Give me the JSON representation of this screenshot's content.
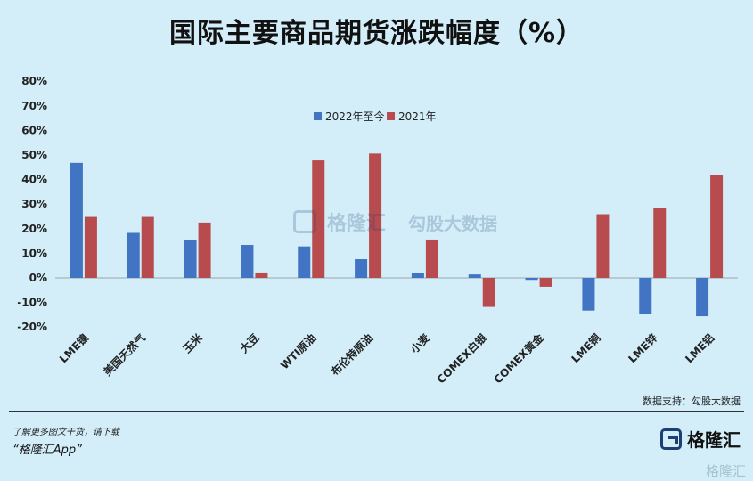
{
  "title": "国际主要商品期货涨跌幅度（%）",
  "source": "数据支持：勾股大数据",
  "footer": {
    "note": "了解更多图文干货，请下载",
    "app": "“格隆汇App”"
  },
  "brand": {
    "name": "格隆汇",
    "watermark_left": "格隆汇",
    "watermark_right": "勾股大数据",
    "corner": "格隆汇"
  },
  "colors": {
    "series_2022": "#4174c3",
    "series_2021": "#b84b4d",
    "background": "#d3eef9"
  },
  "chart_data": {
    "type": "bar",
    "title": "国际主要商品期货涨跌幅度（%）",
    "categories": [
      "LME镍",
      "美国天然气",
      "玉米",
      "大豆",
      "WTI原油",
      "布伦特原油",
      "小麦",
      "COMEX白银",
      "COMEX黄金",
      "LME铜",
      "LME锌",
      "LME铝"
    ],
    "series": [
      {
        "name": "2022年至今",
        "color": "#4174c3",
        "values": [
          46.8,
          18.3,
          15.5,
          13.4,
          12.8,
          7.6,
          2.0,
          1.4,
          -0.8,
          -13.3,
          -14.8,
          -15.6
        ]
      },
      {
        "name": "2021年",
        "color": "#b84b4d",
        "values": [
          24.8,
          24.8,
          22.5,
          2.2,
          47.8,
          50.6,
          15.6,
          -11.8,
          -3.6,
          25.9,
          28.6,
          41.9
        ]
      }
    ],
    "yticks": [
      "80%",
      "70%",
      "60%",
      "50%",
      "40%",
      "30%",
      "20%",
      "10%",
      "0%",
      "-10%",
      "-20%"
    ],
    "ylim": [
      -20,
      80
    ],
    "legend": "top-center",
    "grid": false
  }
}
